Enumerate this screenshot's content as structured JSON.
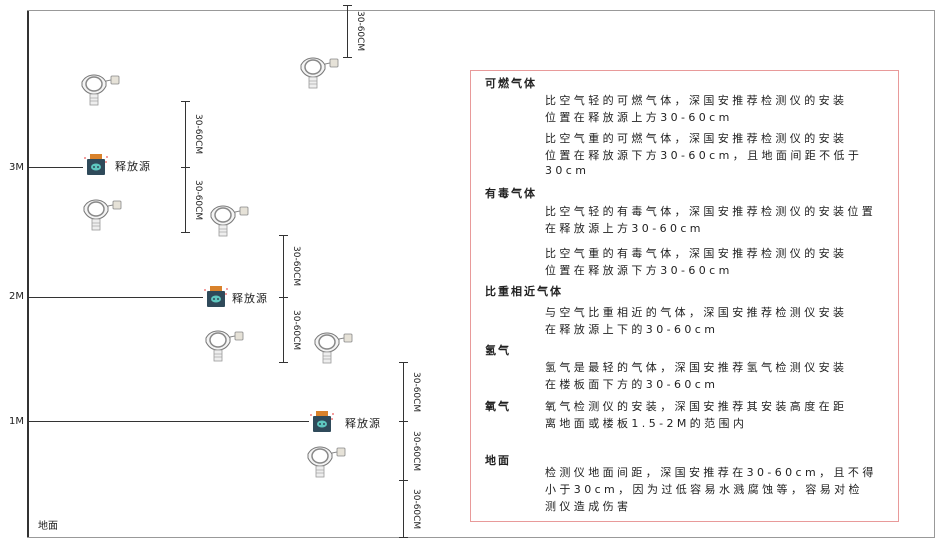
{
  "levels": [
    "3M",
    "2M",
    "1M"
  ],
  "ground_label": "地面",
  "source_label": "释放源",
  "dimension_label": "30-60CM",
  "colors": {
    "frame": "#333333",
    "box_border": "#e89a9a",
    "source_body": "#2f4a5a",
    "source_cap": "#d9822b",
    "source_face": "#5fc8c0"
  },
  "icons": {
    "detector": "gas-detector-icon",
    "source": "release-source-icon"
  },
  "info_box": {
    "sections": [
      {
        "heading": "可燃气体",
        "paragraphs": [
          [
            "比空气轻的可燃气体，深国安推荐检测仪的安装",
            "位置在释放源上方30-60cm"
          ],
          [
            "比空气重的可燃气体，深国安推荐检测仪的安装",
            "位置在释放源下方30-60cm，且地面间距不低于",
            "30cm"
          ]
        ]
      },
      {
        "heading": "有毒气体",
        "paragraphs": [
          [
            "比空气轻的有毒气体，深国安推荐检测仪的安装位置",
            "在释放源上方30-60cm"
          ],
          [
            "比空气重的有毒气体，深国安推荐检测仪的安装",
            "位置在释放源下方30-60cm"
          ]
        ]
      },
      {
        "heading": "比重相近气体",
        "paragraphs": [
          [
            "与空气比重相近的气体，深国安推荐检测仪安装",
            "在释放源上下的30-60cm"
          ]
        ]
      },
      {
        "heading": "氢气",
        "paragraphs": [
          [
            "氢气是最轻的气体，深国安推荐氢气检测仪安装",
            "在楼板面下方的30-60cm"
          ]
        ]
      },
      {
        "heading": "氧气",
        "paragraphs": [
          [
            "氧气检测仪的安装，深国安推荐其安装高度在距",
            "离地面或楼板1.5-2M的范围内"
          ]
        ]
      },
      {
        "heading": "地面",
        "paragraphs": [
          [
            "检测仪地面间距，深国安推荐在30-60cm，且不得",
            "小于30cm，因为过低容易水溅腐蚀等，容易对检",
            "测仪造成伤害"
          ]
        ]
      }
    ]
  }
}
